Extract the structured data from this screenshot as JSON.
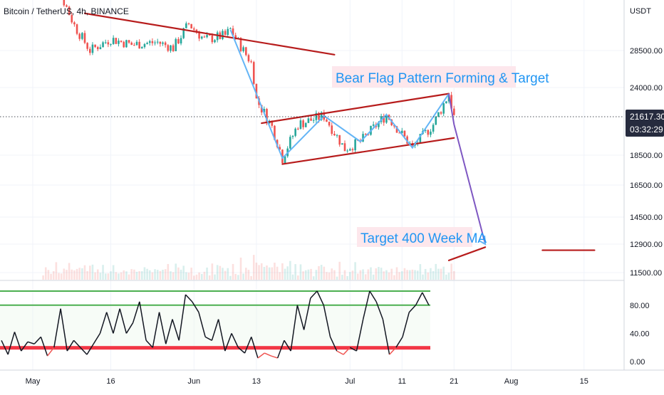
{
  "header": {
    "symbol_title": "Bitcoin / TetherUS, 4h, BINANCE",
    "currency": "USDT"
  },
  "price_badge": {
    "price": "21617.30",
    "countdown": "03:32:29",
    "color": "#262b3e"
  },
  "annotations": {
    "bear_flag": "Bear Flag Pattern Forming & Target",
    "target": "Target 400 Week MA"
  },
  "colors": {
    "up": "#26a69a",
    "down": "#ef5350",
    "trendline": "#b71c1c",
    "pattern": "#64b5f6",
    "annotation_text": "#2196f3",
    "annotation_bg": "#fde7ec",
    "rsi_line": "#131722",
    "rsi_upper": "#4caf50",
    "rsi_lower": "#f23645",
    "grid": "#f0f3fa"
  },
  "chart_data": [
    {
      "type": "candlestick",
      "title": "Bitcoin / TetherUS, 4h, BINANCE",
      "interval": "4h",
      "x_ticks": [
        "May",
        "16",
        "Jun",
        "13",
        "Jul",
        "11",
        "21",
        "Aug",
        "15"
      ],
      "y_ticks": [
        "28500.00",
        "24000.00",
        "18500.00",
        "16500.00",
        "14500.00",
        "12900.00",
        "11500.00"
      ],
      "ylim": [
        11000,
        32000
      ],
      "current_price": 21617.3,
      "price_path": [
        {
          "x": "May 3",
          "y": 38500
        },
        {
          "x": "May 6",
          "y": 36000
        },
        {
          "x": "May 9",
          "y": 31500
        },
        {
          "x": "May 12",
          "y": 28500
        },
        {
          "x": "May 16",
          "y": 29900
        },
        {
          "x": "May 20",
          "y": 29200
        },
        {
          "x": "May 25",
          "y": 29500
        },
        {
          "x": "May 28",
          "y": 28800
        },
        {
          "x": "May 31",
          "y": 31700
        },
        {
          "x": "Jun 3",
          "y": 29800
        },
        {
          "x": "Jun 7",
          "y": 30300
        },
        {
          "x": "Jun 8",
          "y": 31000
        },
        {
          "x": "Jun 10",
          "y": 29000
        },
        {
          "x": "Jun 12",
          "y": 27000
        },
        {
          "x": "Jun 13",
          "y": 23000
        },
        {
          "x": "Jun 14",
          "y": 22300
        },
        {
          "x": "Jun 16",
          "y": 20800
        },
        {
          "x": "Jun 18",
          "y": 18300
        },
        {
          "x": "Jun 21",
          "y": 21000
        },
        {
          "x": "Jun 26",
          "y": 21700
        },
        {
          "x": "Jun 30",
          "y": 19000
        },
        {
          "x": "Jul 3",
          "y": 19600
        },
        {
          "x": "Jul 8",
          "y": 21800
        },
        {
          "x": "Jul 13",
          "y": 19100
        },
        {
          "x": "Jul 17",
          "y": 21000
        },
        {
          "x": "Jul 20",
          "y": 23500
        },
        {
          "x": "Jul 21",
          "y": 21617
        }
      ],
      "trendlines": [
        {
          "name": "descending-resistance",
          "points": [
            {
              "x": "May 11",
              "y": 33000
            },
            {
              "x": "Jun 28",
              "y": 28000
            }
          ]
        },
        {
          "name": "flag-upper",
          "points": [
            {
              "x": "Jun 14",
              "y": 21100
            },
            {
              "x": "Jul 20",
              "y": 23500
            }
          ]
        },
        {
          "name": "flag-lower",
          "points": [
            {
              "x": "Jun 18",
              "y": 17900
            },
            {
              "x": "Jul 21",
              "y": 19900
            }
          ]
        },
        {
          "name": "target-ma",
          "points": [
            {
              "x": "Jul 20",
              "y": 12100
            },
            {
              "x": "Jul 27",
              "y": 12750
            }
          ]
        },
        {
          "name": "target-level",
          "points": [
            {
              "x": "Aug 7",
              "y": 12600
            },
            {
              "x": "Aug 17",
              "y": 12600
            }
          ]
        }
      ],
      "projection": [
        {
          "x": "Jul 20",
          "y": 23500
        },
        {
          "x": "Jul 21",
          "y": 21000
        },
        {
          "x": "Jul 27",
          "y": 12900
        }
      ]
    },
    {
      "type": "line",
      "title": "",
      "y_ticks": [
        "80.00",
        "40.00",
        "0.00"
      ],
      "ylim": [
        -5,
        115
      ],
      "upper_band": 80,
      "top_band": 100,
      "lower_band": 20,
      "series": [
        {
          "values": [
            30,
            10,
            42,
            15,
            28,
            25,
            35,
            8,
            20,
            75,
            15,
            30,
            20,
            10,
            25,
            40,
            70,
            40,
            75,
            40,
            55,
            85,
            30,
            20,
            70,
            25,
            60,
            30,
            95,
            85,
            70,
            35,
            30,
            60,
            15,
            40,
            20,
            12,
            35,
            5,
            12,
            8,
            5,
            30,
            15,
            80,
            45,
            90,
            100,
            80,
            35,
            15,
            10,
            20,
            15,
            60,
            100,
            85,
            60,
            10,
            20,
            35,
            70,
            80,
            98,
            80
          ]
        }
      ]
    }
  ]
}
